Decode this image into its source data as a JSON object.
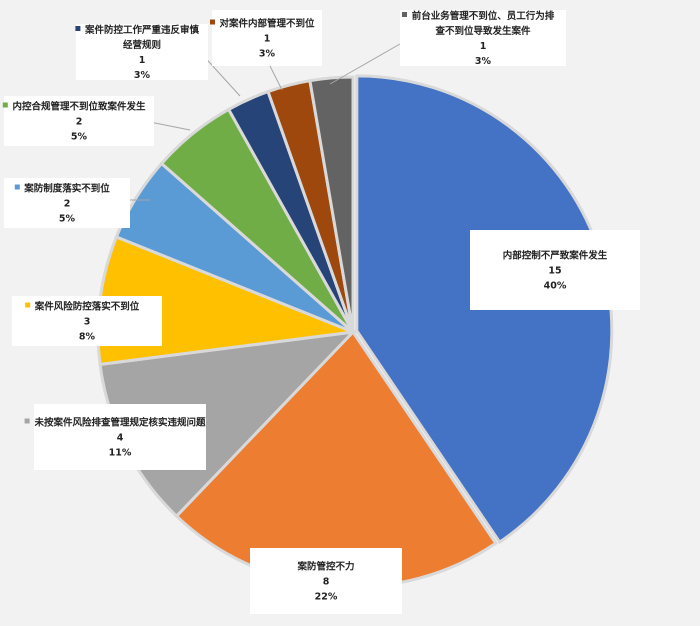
{
  "chart_data": {
    "type": "pie",
    "slices": [
      {
        "name": "内部控制不严致案件发生",
        "value": 15,
        "percent": "40%",
        "color": "#4472c4"
      },
      {
        "name": "案防管控不力",
        "value": 8,
        "percent": "22%",
        "color": "#ed7d31"
      },
      {
        "name": "未按案件风险排查管理规定核实违规问题",
        "value": 4,
        "percent": "11%",
        "color": "#a5a5a5"
      },
      {
        "name": "案件风险防控落实不到位",
        "value": 3,
        "percent": "8%",
        "color": "#ffc000"
      },
      {
        "name": "案防制度落实不到位",
        "value": 2,
        "percent": "5%",
        "color": "#5b9bd5"
      },
      {
        "name": "内控合规管理不到位致案件发生",
        "value": 2,
        "percent": "5%",
        "color": "#70ad47"
      },
      {
        "name": "案件防控工作严重违反审慎经营规则",
        "value": 1,
        "percent": "3%",
        "color": "#264478"
      },
      {
        "name": "对案件内部管理不到位",
        "value": 1,
        "percent": "3%",
        "color": "#9e480e"
      },
      {
        "name": "前台业务管理不到位、员工行为排查不到位导致发生案件",
        "value": 1,
        "percent": "3%",
        "color": "#636363"
      }
    ]
  }
}
